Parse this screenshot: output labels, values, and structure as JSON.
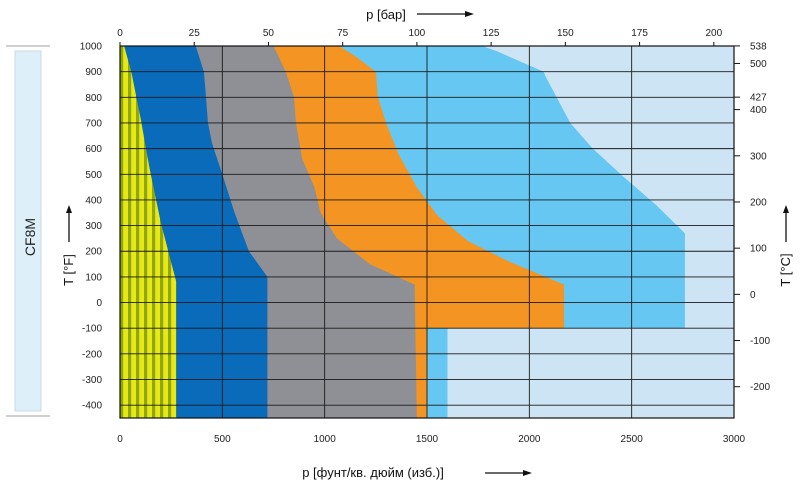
{
  "chart_data": {
    "type": "area",
    "material_label": "CF8M",
    "x_bottom": {
      "label": "p [фунт/кв. дюйм (изб.)]",
      "range": [
        0,
        3000
      ],
      "ticks": [
        0,
        500,
        1000,
        1500,
        2000,
        2500,
        3000
      ]
    },
    "x_top": {
      "label": "p [бар]",
      "range": [
        0,
        206.8
      ],
      "ticks": [
        0,
        25,
        50,
        75,
        100,
        125,
        150,
        175,
        200
      ]
    },
    "y_left": {
      "label": "T [°F]",
      "range": [
        -450,
        1000
      ],
      "ticks": [
        -400,
        -300,
        -200,
        -100,
        0,
        100,
        200,
        300,
        400,
        500,
        600,
        700,
        800,
        900,
        1000
      ]
    },
    "y_right": {
      "label": "T [°C]",
      "ticks": [
        -200,
        -100,
        0,
        100,
        200,
        300,
        400,
        427,
        500,
        538
      ]
    },
    "grid": true,
    "series": [
      {
        "color": "#cde4f4",
        "fill": "solid",
        "boundary": [
          [
            3000,
            -450
          ],
          [
            3000,
            1000
          ]
        ]
      },
      {
        "color": "#66c8f2",
        "fill": "solid",
        "boundary": [
          [
            1600,
            -450
          ],
          [
            1600,
            -100
          ],
          [
            2760,
            -100
          ],
          [
            2760,
            270
          ],
          [
            2620,
            380
          ],
          [
            2460,
            490
          ],
          [
            2310,
            600
          ],
          [
            2200,
            700
          ],
          [
            2140,
            790
          ],
          [
            2080,
            880
          ],
          [
            2070,
            900
          ],
          [
            1840,
            980
          ],
          [
            1770,
            1000
          ]
        ]
      },
      {
        "color": "#f39423",
        "fill": "solid",
        "boundary": [
          [
            1500,
            -450
          ],
          [
            1500,
            -100
          ],
          [
            2170,
            -100
          ],
          [
            2170,
            70
          ],
          [
            1900,
            160
          ],
          [
            1700,
            240
          ],
          [
            1550,
            340
          ],
          [
            1450,
            450
          ],
          [
            1360,
            580
          ],
          [
            1300,
            700
          ],
          [
            1260,
            800
          ],
          [
            1250,
            900
          ],
          [
            1150,
            960
          ],
          [
            1070,
            1000
          ]
        ]
      },
      {
        "color": "#8f9096",
        "fill": "solid",
        "boundary": [
          [
            1450,
            -450
          ],
          [
            1440,
            70
          ],
          [
            1220,
            150
          ],
          [
            1060,
            250
          ],
          [
            980,
            350
          ],
          [
            950,
            450
          ],
          [
            890,
            560
          ],
          [
            860,
            700
          ],
          [
            850,
            800
          ],
          [
            810,
            900
          ],
          [
            750,
            1000
          ]
        ]
      },
      {
        "color": "#0a6bbb",
        "fill": "solid",
        "boundary": [
          [
            720,
            -450
          ],
          [
            720,
            100
          ],
          [
            630,
            200
          ],
          [
            560,
            350
          ],
          [
            500,
            500
          ],
          [
            450,
            620
          ],
          [
            430,
            700
          ],
          [
            420,
            800
          ],
          [
            410,
            900
          ],
          [
            390,
            950
          ],
          [
            370,
            1000
          ]
        ]
      },
      {
        "color": "#ecea18",
        "fill": "striped",
        "boundary": [
          [
            275,
            -450
          ],
          [
            275,
            80
          ],
          [
            200,
            310
          ],
          [
            145,
            520
          ],
          [
            100,
            720
          ],
          [
            55,
            900
          ],
          [
            20,
            1000
          ]
        ]
      }
    ]
  }
}
